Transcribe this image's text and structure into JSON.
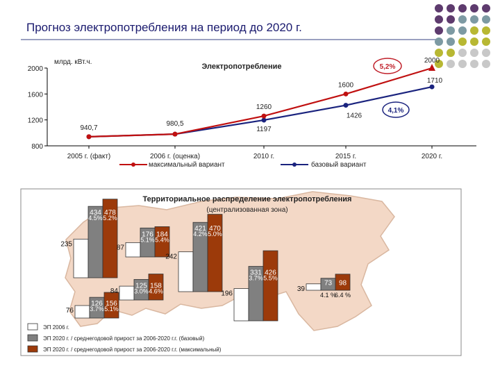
{
  "page_title": "Прогноз электропотребления на период до 2020 г.",
  "colors": {
    "max_line": "#c01010",
    "base_line": "#1a237e",
    "bar_2006": "#ffffff",
    "bar_base": "#808080",
    "bar_max": "#9c3a0a",
    "map_fill": "#f3d8c6",
    "map_border": "#d9b7a0",
    "badge": "#c0202a"
  },
  "decor_dots": [
    [
      "#5e3b6e",
      "#5e3b6e",
      "#5e3b6e",
      "#5e3b6e",
      "#5e3b6e"
    ],
    [
      "#5e3b6e",
      "#5e3b6e",
      "#7d9aa3",
      "#7d9aa3",
      "#7d9aa3"
    ],
    [
      "#5e3b6e",
      "#7d9aa3",
      "#7d9aa3",
      "#b8b833",
      "#b8b833"
    ],
    [
      "#7d9aa3",
      "#7d9aa3",
      "#b8b833",
      "#b8b833",
      "#b8b833"
    ],
    [
      "#b8b833",
      "#b8b833",
      "#c8c8c8",
      "#c8c8c8",
      "#c8c8c8"
    ],
    [
      "#b8b833",
      "#c8c8c8",
      "#c8c8c8",
      "#c8c8c8",
      "#c8c8c8"
    ]
  ],
  "chart_data": [
    {
      "type": "line",
      "title": "Электропотребление",
      "ylabel": "млрд. кВт.ч.",
      "ylim": [
        800,
        2000
      ],
      "yticks": [
        "800",
        "1200",
        "1600",
        "2000"
      ],
      "categories": [
        "2005 г. (факт)",
        "2006 г. (оценка)",
        "2010 г.",
        "2015 г.",
        "2020 г."
      ],
      "series": [
        {
          "name": "максимальный вариант",
          "values": [
            940.7,
            980.5,
            1260,
            1600,
            2000
          ],
          "labels": [
            "940,7",
            "980,5",
            "1260",
            "1600",
            "2000"
          ]
        },
        {
          "name": "базовый вариант",
          "values": [
            940.7,
            980.5,
            1197,
            1426,
            1710
          ],
          "labels": [
            "",
            "",
            "1197",
            "1426",
            "1710"
          ]
        }
      ],
      "annotations": [
        "5,2%",
        "4,1%"
      ]
    },
    {
      "type": "bar",
      "title": "Территориальное распределение электропотребления",
      "subtitle": "(централизованная зона)",
      "series_names": [
        "ЭП 2006 г.",
        "ЭП 2020 г. / среднегодовой прирост за 2006-2020 г.г. (базовый)",
        "ЭП 2020 г. / среднегодовой прирост за 2006-2020 г.г. (максимальный)"
      ],
      "groups": [
        {
          "values": [
            235,
            434,
            478
          ],
          "rates": [
            "",
            "4.5%",
            "5.2%"
          ]
        },
        {
          "values": [
            87,
            176,
            184
          ],
          "rates": [
            "",
            "5.1%",
            "5.4%"
          ]
        },
        {
          "values": [
            76,
            126,
            156
          ],
          "rates": [
            "",
            "3.7%",
            "5.1%"
          ]
        },
        {
          "values": [
            84,
            125,
            158
          ],
          "rates": [
            "",
            "3.0%",
            "4.6%"
          ]
        },
        {
          "values": [
            242,
            421,
            470
          ],
          "rates": [
            "",
            "4.2%",
            "5.0%"
          ]
        },
        {
          "values": [
            196,
            331,
            426
          ],
          "rates": [
            "",
            "3.7%",
            "5.5%"
          ]
        },
        {
          "values": [
            39,
            73,
            98
          ],
          "rates": [
            "",
            "4.1 %",
            "6.4 %"
          ]
        }
      ]
    }
  ]
}
